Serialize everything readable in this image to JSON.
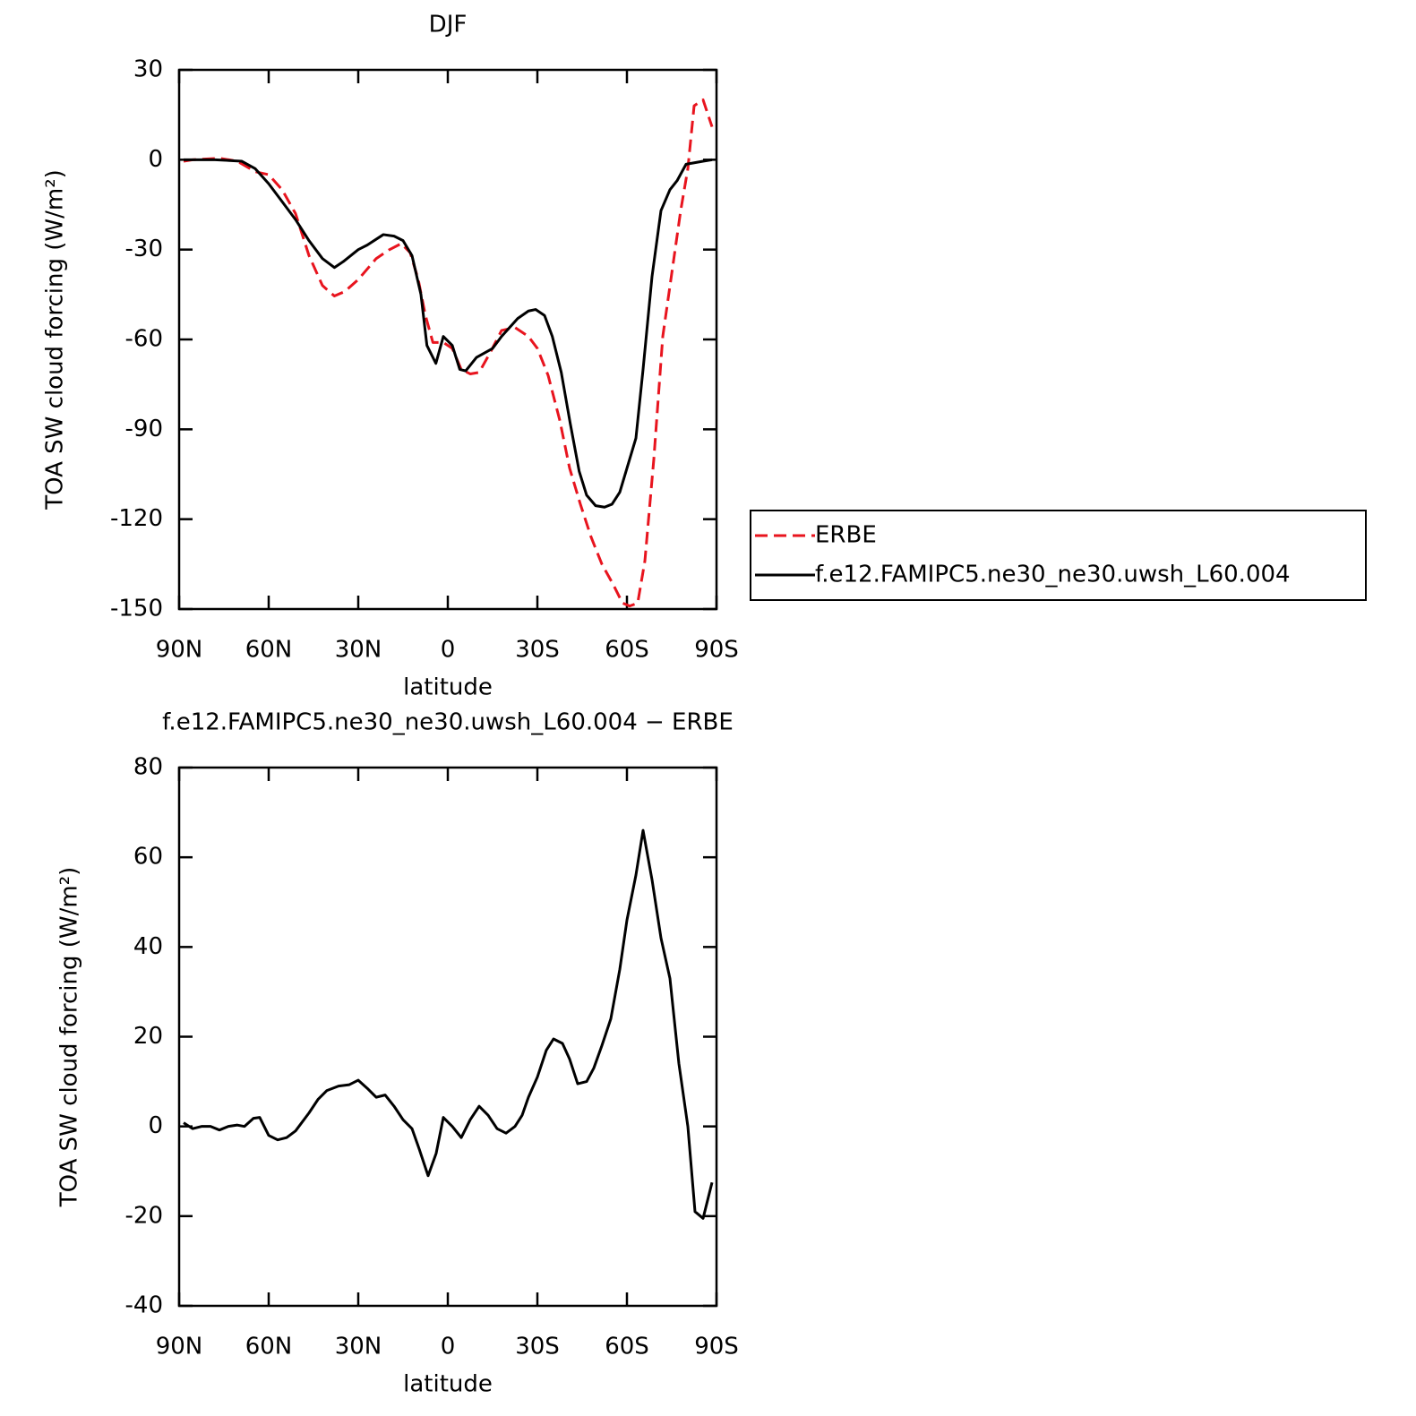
{
  "chart_data": [
    {
      "type": "line",
      "title": "DJF",
      "xlabel": "latitude",
      "ylabel": "TOA SW cloud forcing (W/m²)",
      "xlim": [
        90,
        -90
      ],
      "ylim": [
        30,
        -150
      ],
      "xticks": [
        {
          "value": 90,
          "label": "90N"
        },
        {
          "value": 60,
          "label": "60N"
        },
        {
          "value": 30,
          "label": "30N"
        },
        0,
        {
          "value": -30,
          "label": "30S"
        },
        {
          "value": -60,
          "label": "60S"
        },
        {
          "value": -90,
          "label": "90S"
        }
      ],
      "yticks": [
        30,
        0,
        -30,
        -60,
        -90,
        -120,
        -150
      ],
      "legend": "outside-right",
      "series": [
        {
          "name": "ERBE",
          "color": "#e8141e",
          "style": "dashed",
          "x": [
            88.5,
            85.5,
            76.5,
            70.5,
            64.5,
            60,
            55.5,
            51,
            46.5,
            42,
            38,
            34.5,
            30,
            24,
            19.5,
            15.6,
            12.6,
            9.9,
            7.5,
            5,
            1.5,
            -1.5,
            -4.5,
            -7.5,
            -10.5,
            -14.4,
            -18,
            -22.5,
            -27,
            -30,
            -33.6,
            -37.5,
            -40.8,
            -44.4,
            -48,
            -51.6,
            -55.5,
            -58.5,
            -60.9,
            -63.6,
            -66,
            -69,
            -72,
            -75,
            -78,
            -80.4,
            -82.5,
            -85.5,
            -88.5
          ],
          "values": [
            -0.5,
            0,
            0.5,
            -0.5,
            -4,
            -5,
            -10,
            -18,
            -32,
            -42,
            -45.5,
            -44,
            -40,
            -33,
            -30,
            -28,
            -31,
            -40,
            -52,
            -61,
            -61,
            -63,
            -70,
            -71.5,
            -71,
            -64,
            -57,
            -56,
            -59,
            -63,
            -72,
            -87,
            -103,
            -115,
            -126,
            -135,
            -142,
            -148,
            -149,
            -148,
            -134,
            -100,
            -59,
            -38,
            -17,
            -3,
            18,
            20,
            11
          ]
        },
        {
          "name": "f.e12.FAMIPC5.ne30_ne30.uwsh_L60.004",
          "color": "#000000",
          "style": "solid",
          "x": [
            88.5,
            78,
            69,
            64.5,
            60,
            55.5,
            51,
            46.5,
            42,
            38,
            35,
            30,
            27,
            21.6,
            18,
            15,
            12,
            9,
            7,
            4,
            1.5,
            -1.5,
            -4,
            -6,
            -9.6,
            -15,
            -18,
            -23.4,
            -27,
            -29.4,
            -32.4,
            -35,
            -38,
            -41,
            -44,
            -46.5,
            -49.5,
            -52.5,
            -55,
            -57.6,
            -60,
            -63,
            -65.4,
            -68.4,
            -71.4,
            -74.4,
            -76.8,
            -79.8,
            -85.5,
            -88.5
          ],
          "values": [
            0,
            0,
            -0.5,
            -3,
            -8,
            -14,
            -20,
            -27,
            -33,
            -36,
            -34,
            -30,
            -28.5,
            -25,
            -25.5,
            -27,
            -32,
            -45,
            -62,
            -68,
            -59,
            -62,
            -70,
            -70.5,
            -66,
            -63,
            -59,
            -53,
            -50.5,
            -50,
            -52,
            -59,
            -71,
            -88,
            -104,
            -112,
            -115.5,
            -116,
            -115,
            -111,
            -103,
            -93,
            -70,
            -39,
            -17,
            -10,
            -7,
            -1.5,
            -0.5,
            0
          ]
        }
      ]
    },
    {
      "type": "line",
      "title": "f.e12.FAMIPC5.ne30_ne30.uwsh_L60.004 − ERBE",
      "xlabel": "latitude",
      "ylabel": "TOA SW cloud forcing (W/m²)",
      "xlim": [
        90,
        -90
      ],
      "ylim": [
        80,
        -40
      ],
      "xticks": [
        {
          "value": 90,
          "label": "90N"
        },
        {
          "value": 60,
          "label": "60N"
        },
        {
          "value": 30,
          "label": "30N"
        },
        0,
        {
          "value": -30,
          "label": "30S"
        },
        {
          "value": -60,
          "label": "60S"
        },
        {
          "value": -90,
          "label": "90S"
        }
      ],
      "yticks": [
        80,
        60,
        40,
        20,
        0,
        -20,
        -40
      ],
      "series": [
        {
          "color": "#000000",
          "style": "solid",
          "x": [
            88.5,
            85.5,
            82.5,
            79.5,
            76.5,
            73.5,
            70.5,
            68.1,
            65.1,
            63,
            60,
            57,
            54,
            51,
            46.5,
            43.5,
            40.5,
            36.6,
            33,
            30,
            27,
            24,
            21,
            18,
            15,
            12,
            9.6,
            6.6,
            3.9,
            1.5,
            -1.5,
            -4.5,
            -7.5,
            -10.5,
            -13.5,
            -16.5,
            -19.5,
            -22.5,
            -24.9,
            -27,
            -30,
            -33,
            -35.4,
            -38.4,
            -40.8,
            -43.5,
            -46.5,
            -48.9,
            -51.6,
            -54.6,
            -57.6,
            -60,
            -63,
            -65.4,
            -68.4,
            -71.4,
            -74.4,
            -77.4,
            -80.4,
            -82.8,
            -85.5,
            -88.5
          ],
          "values": [
            0.8,
            -0.5,
            0,
            0,
            -0.8,
            0,
            0.3,
            0,
            1.8,
            2,
            -2,
            -3,
            -2.5,
            -1,
            3,
            6,
            8,
            9,
            9.3,
            10.3,
            8.5,
            6.5,
            7,
            4.5,
            1.5,
            -0.5,
            -5,
            -11,
            -6,
            2,
            0,
            -2.5,
            1.5,
            4.5,
            2.5,
            -0.5,
            -1.5,
            0,
            2.5,
            6.5,
            11,
            17,
            19.5,
            18.5,
            15,
            9.5,
            10,
            13,
            18,
            24,
            35,
            46,
            56,
            66,
            55,
            42,
            33,
            14,
            0,
            -19,
            -20.5,
            -12.5
          ]
        }
      ]
    }
  ]
}
